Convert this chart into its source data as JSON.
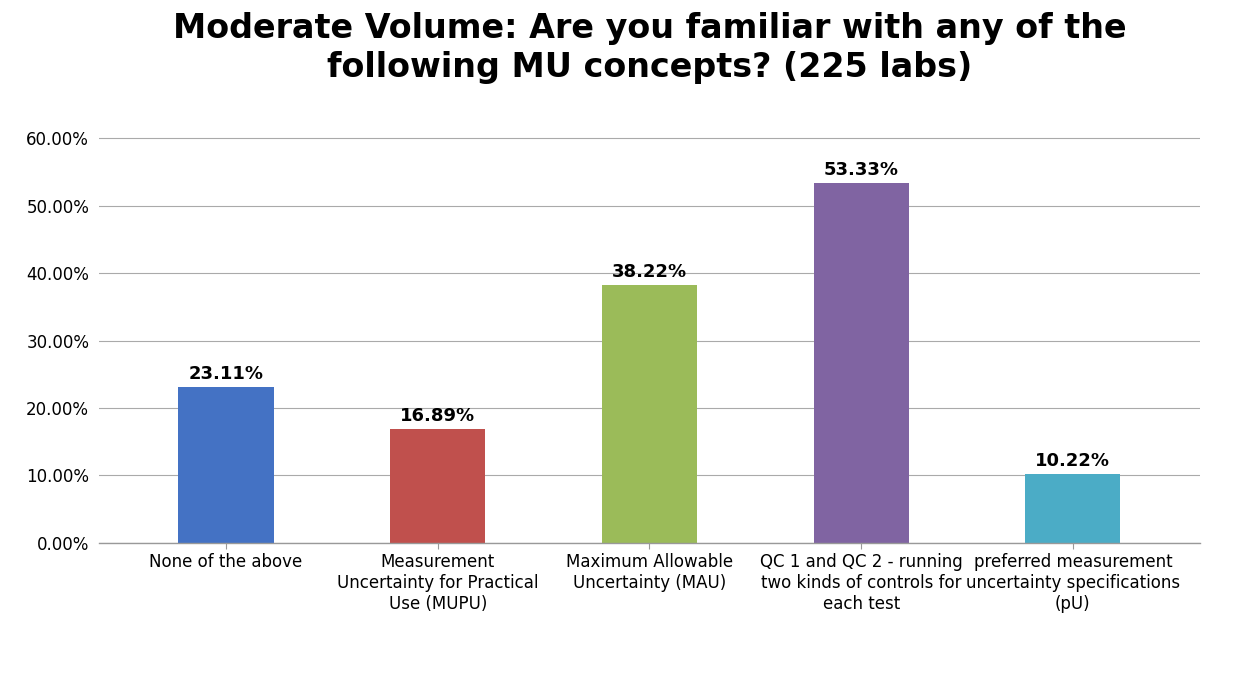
{
  "title": "Moderate Volume: Are you familiar with any of the\nfollowing MU concepts? (225 labs)",
  "categories": [
    "None of the above",
    "Measurement\nUncertainty for Practical\nUse (MUPU)",
    "Maximum Allowable\nUncertainty (MAU)",
    "QC 1 and QC 2 - running\ntwo kinds of controls for\neach test",
    "preferred measurement\nuncertainty specifications\n(pU)"
  ],
  "values": [
    0.2311,
    0.1689,
    0.3822,
    0.5333,
    0.1022
  ],
  "labels": [
    "23.11%",
    "16.89%",
    "38.22%",
    "53.33%",
    "10.22%"
  ],
  "bar_colors": [
    "#4472C4",
    "#C0504D",
    "#9BBB59",
    "#8064A2",
    "#4BACC6"
  ],
  "ylim": [
    0,
    0.65
  ],
  "yticks": [
    0.0,
    0.1,
    0.2,
    0.3,
    0.4,
    0.5,
    0.6
  ],
  "ytick_labels": [
    "0.00%",
    "10.00%",
    "20.00%",
    "30.00%",
    "40.00%",
    "50.00%",
    "60.00%"
  ],
  "background_color": "#FFFFFF",
  "title_fontsize": 24,
  "tick_fontsize": 12,
  "bar_label_fontsize": 13,
  "bar_width": 0.45,
  "grid_color": "#AAAAAA",
  "spine_color": "#999999"
}
